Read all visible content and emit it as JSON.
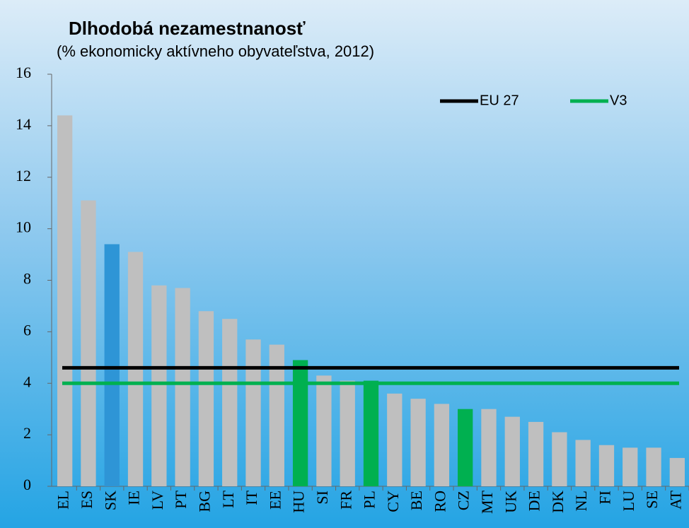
{
  "chart_data": {
    "type": "bar",
    "title": "Dlhodobá nezamestnanosť",
    "subtitle": "(% ekonomicky aktívneho obyvateľstva, 2012)",
    "categories": [
      "EL",
      "ES",
      "SK",
      "IE",
      "LV",
      "PT",
      "BG",
      "LT",
      "IT",
      "EE",
      "HU",
      "SI",
      "FR",
      "PL",
      "CY",
      "BE",
      "RO",
      "CZ",
      "MT",
      "UK",
      "DE",
      "DK",
      "NL",
      "FI",
      "LU",
      "SE",
      "AT"
    ],
    "values": [
      14.4,
      11.1,
      9.4,
      9.1,
      7.8,
      7.7,
      6.8,
      6.5,
      5.7,
      5.5,
      4.9,
      4.3,
      4.1,
      4.1,
      3.6,
      3.4,
      3.2,
      3.0,
      3.0,
      2.7,
      2.5,
      2.1,
      1.8,
      1.6,
      1.5,
      1.5,
      1.1
    ],
    "colors": [
      "#bfbfbf",
      "#bfbfbf",
      "#2e95d6",
      "#bfbfbf",
      "#bfbfbf",
      "#bfbfbf",
      "#bfbfbf",
      "#bfbfbf",
      "#bfbfbf",
      "#bfbfbf",
      "#00b050",
      "#bfbfbf",
      "#bfbfbf",
      "#00b050",
      "#bfbfbf",
      "#bfbfbf",
      "#bfbfbf",
      "#00b050",
      "#bfbfbf",
      "#bfbfbf",
      "#bfbfbf",
      "#bfbfbf",
      "#bfbfbf",
      "#bfbfbf",
      "#bfbfbf",
      "#bfbfbf",
      "#bfbfbf"
    ],
    "reference_lines": [
      {
        "name": "EU 27",
        "color": "#000000",
        "value": 4.6
      },
      {
        "name": "V3",
        "color": "#00b050",
        "value": 4.0
      }
    ],
    "ylim": [
      0,
      16
    ],
    "yticks": [
      0,
      2,
      4,
      6,
      8,
      10,
      12,
      14,
      16
    ]
  }
}
